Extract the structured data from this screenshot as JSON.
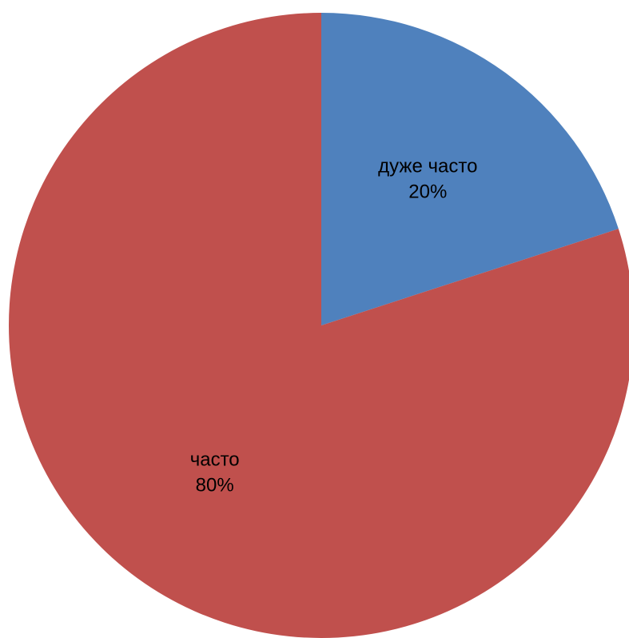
{
  "chart_data": {
    "type": "pie",
    "title": "",
    "start_angle": "12 o'clock",
    "direction": "clockwise",
    "legend": "none",
    "slices": [
      {
        "category": "дуже часто",
        "value": 20,
        "percent_label": "20%",
        "color": "#4f81bd"
      },
      {
        "category": "часто",
        "value": 80,
        "percent_label": "80%",
        "color": "#c0504d"
      }
    ]
  }
}
